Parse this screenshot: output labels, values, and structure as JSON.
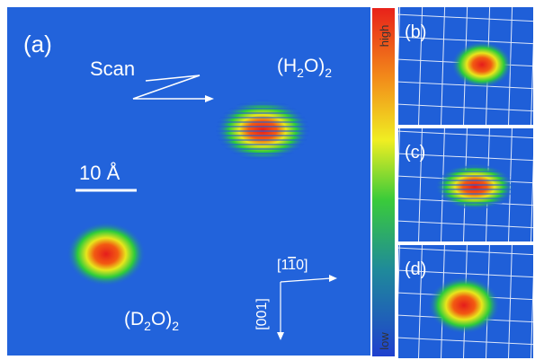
{
  "panel_a": {
    "label": "(a)",
    "scan": "Scan",
    "h2o": {
      "parts": [
        "(H",
        "2",
        "O)",
        "2"
      ]
    },
    "d2o": {
      "parts": [
        "(D",
        "2",
        "O)",
        "2"
      ]
    },
    "scale": "10 Å",
    "dir_x": {
      "parts": [
        "[1",
        "1",
        "0]"
      ]
    },
    "dir_y": "[001]"
  },
  "colorbar": {
    "high": "high",
    "low": "low"
  },
  "panels": [
    "(b)",
    "(c)",
    "(d)"
  ]
}
